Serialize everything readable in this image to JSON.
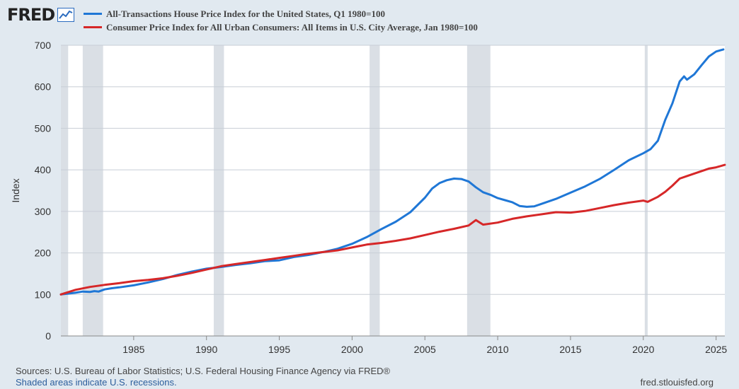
{
  "brand": {
    "name": "FRED",
    "logo_icon": "chart-line-icon"
  },
  "footer": {
    "sources": "Sources: U.S. Bureau of Labor Statistics; U.S. Federal Housing Finance Agency via FRED®",
    "recessions_note": "Shaded areas indicate U.S. recessions.",
    "site": "fred.stlouisfed.org"
  },
  "chart_data": {
    "type": "line",
    "title": "",
    "xlabel": "",
    "ylabel": "Index",
    "xlim": [
      1980,
      2025.6
    ],
    "ylim": [
      0,
      700
    ],
    "yticks": [
      0,
      100,
      200,
      300,
      400,
      500,
      600,
      700
    ],
    "xticks": [
      1985,
      1990,
      1995,
      2000,
      2005,
      2010,
      2015,
      2020,
      2025
    ],
    "grid": true,
    "legend_position": "top-left",
    "recessions": [
      [
        1980.0,
        1980.5
      ],
      [
        1981.5,
        1982.9
      ],
      [
        1990.5,
        1991.2
      ],
      [
        2001.2,
        2001.9
      ],
      [
        2007.9,
        2009.5
      ],
      [
        2020.1,
        2020.3
      ]
    ],
    "series": [
      {
        "name": "All-Transactions House Price Index for the United States, Q1 1980=100",
        "color": "#1f77d6",
        "points": [
          [
            1980.0,
            100
          ],
          [
            1980.5,
            102
          ],
          [
            1981.0,
            104
          ],
          [
            1981.5,
            107
          ],
          [
            1982.0,
            106
          ],
          [
            1982.3,
            108
          ],
          [
            1982.6,
            107
          ],
          [
            1983.0,
            112
          ],
          [
            1983.5,
            115
          ],
          [
            1984.0,
            117
          ],
          [
            1985.0,
            122
          ],
          [
            1986.0,
            129
          ],
          [
            1987.0,
            137
          ],
          [
            1988.0,
            147
          ],
          [
            1989.0,
            155
          ],
          [
            1990.0,
            162
          ],
          [
            1991.0,
            166
          ],
          [
            1992.0,
            171
          ],
          [
            1993.0,
            175
          ],
          [
            1994.0,
            180
          ],
          [
            1995.0,
            182
          ],
          [
            1996.0,
            190
          ],
          [
            1997.0,
            195
          ],
          [
            1998.0,
            202
          ],
          [
            1999.0,
            210
          ],
          [
            2000.0,
            222
          ],
          [
            2001.0,
            238
          ],
          [
            2002.0,
            257
          ],
          [
            2003.0,
            275
          ],
          [
            2004.0,
            298
          ],
          [
            2005.0,
            333
          ],
          [
            2005.5,
            355
          ],
          [
            2006.0,
            368
          ],
          [
            2006.5,
            375
          ],
          [
            2007.0,
            379
          ],
          [
            2007.5,
            378
          ],
          [
            2008.0,
            372
          ],
          [
            2008.5,
            358
          ],
          [
            2009.0,
            346
          ],
          [
            2009.5,
            340
          ],
          [
            2010.0,
            332
          ],
          [
            2010.5,
            327
          ],
          [
            2011.0,
            322
          ],
          [
            2011.5,
            313
          ],
          [
            2012.0,
            311
          ],
          [
            2012.5,
            312
          ],
          [
            2013.0,
            318
          ],
          [
            2014.0,
            330
          ],
          [
            2015.0,
            345
          ],
          [
            2016.0,
            360
          ],
          [
            2017.0,
            378
          ],
          [
            2018.0,
            400
          ],
          [
            2019.0,
            423
          ],
          [
            2020.0,
            440
          ],
          [
            2020.5,
            450
          ],
          [
            2021.0,
            470
          ],
          [
            2021.5,
            520
          ],
          [
            2022.0,
            560
          ],
          [
            2022.5,
            613
          ],
          [
            2022.8,
            625
          ],
          [
            2023.0,
            617
          ],
          [
            2023.5,
            630
          ],
          [
            2024.0,
            652
          ],
          [
            2024.5,
            673
          ],
          [
            2025.0,
            685
          ],
          [
            2025.5,
            690
          ]
        ]
      },
      {
        "name": "Consumer Price Index for All Urban Consumers: All Items in U.S. City Average, Jan 1980=100",
        "color": "#d62728",
        "points": [
          [
            1980.0,
            100
          ],
          [
            1981.0,
            111
          ],
          [
            1982.0,
            118
          ],
          [
            1983.0,
            123
          ],
          [
            1984.0,
            127
          ],
          [
            1985.0,
            132
          ],
          [
            1986.0,
            135
          ],
          [
            1987.0,
            139
          ],
          [
            1988.0,
            145
          ],
          [
            1989.0,
            152
          ],
          [
            1990.0,
            160
          ],
          [
            1991.0,
            168
          ],
          [
            1992.0,
            173
          ],
          [
            1993.0,
            178
          ],
          [
            1994.0,
            183
          ],
          [
            1995.0,
            188
          ],
          [
            1996.0,
            193
          ],
          [
            1997.0,
            198
          ],
          [
            1998.0,
            202
          ],
          [
            1999.0,
            206
          ],
          [
            2000.0,
            213
          ],
          [
            2001.0,
            220
          ],
          [
            2002.0,
            224
          ],
          [
            2003.0,
            229
          ],
          [
            2004.0,
            235
          ],
          [
            2005.0,
            243
          ],
          [
            2006.0,
            251
          ],
          [
            2007.0,
            258
          ],
          [
            2008.0,
            266
          ],
          [
            2008.5,
            279
          ],
          [
            2009.0,
            268
          ],
          [
            2010.0,
            273
          ],
          [
            2011.0,
            282
          ],
          [
            2012.0,
            288
          ],
          [
            2013.0,
            293
          ],
          [
            2014.0,
            298
          ],
          [
            2015.0,
            297
          ],
          [
            2016.0,
            301
          ],
          [
            2017.0,
            308
          ],
          [
            2018.0,
            315
          ],
          [
            2019.0,
            321
          ],
          [
            2020.0,
            326
          ],
          [
            2020.3,
            323
          ],
          [
            2021.0,
            335
          ],
          [
            2021.5,
            347
          ],
          [
            2022.0,
            362
          ],
          [
            2022.5,
            379
          ],
          [
            2023.0,
            385
          ],
          [
            2023.5,
            391
          ],
          [
            2024.0,
            397
          ],
          [
            2024.5,
            403
          ],
          [
            2025.0,
            406
          ],
          [
            2025.6,
            412
          ]
        ]
      }
    ]
  }
}
